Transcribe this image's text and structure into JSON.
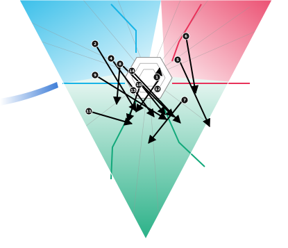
{
  "diagram": {
    "colors": {
      "blue": "#18b4e6",
      "red": "#e8325a",
      "green": "#12a87a",
      "arrow": "#000000",
      "swoosh": "#3f7ed8"
    },
    "nodes": [
      {
        "label": "2"
      },
      {
        "label": "4"
      },
      {
        "label": "8"
      },
      {
        "label": "9"
      },
      {
        "label": "11"
      },
      {
        "label": "14"
      },
      {
        "label": "10"
      },
      {
        "label": "13"
      },
      {
        "label": "1"
      },
      {
        "label": "12"
      },
      {
        "label": "5"
      },
      {
        "label": "6"
      },
      {
        "label": "7"
      }
    ]
  }
}
